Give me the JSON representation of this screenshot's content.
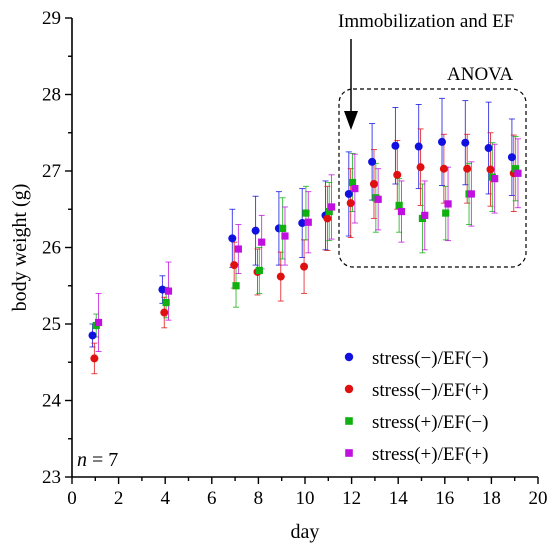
{
  "chart_data": {
    "type": "scatter",
    "title": "",
    "xlabel": "day",
    "ylabel": "body weight (g)",
    "xlim": [
      0,
      20
    ],
    "ylim": [
      23,
      29
    ],
    "x_ticks": [
      0,
      2,
      4,
      6,
      8,
      10,
      12,
      14,
      16,
      18,
      20
    ],
    "y_ticks": [
      23,
      24,
      25,
      26,
      27,
      28,
      29
    ],
    "x_tick_labels": [
      "0",
      "2",
      "4",
      "6",
      "8",
      "10",
      "12",
      "14",
      "16",
      "18",
      "20"
    ],
    "y_tick_labels": [
      "23",
      "24",
      "25",
      "26",
      "27",
      "28",
      "29"
    ],
    "grid": false,
    "legend_position": "bottom-right",
    "annotations": {
      "arrow_label": "Immobilization and EF",
      "box_label": "ANOVA",
      "n_prefix": "n",
      "n_suffix": " = 7"
    },
    "series": [
      {
        "name": "stress(−)/EF(−)",
        "color": "#1010e0",
        "marker": "circle",
        "x": [
          1,
          4,
          7,
          8,
          9,
          10,
          11,
          12,
          13,
          14,
          15,
          16,
          17,
          18,
          19
        ],
        "y": [
          24.85,
          25.45,
          26.12,
          26.22,
          26.25,
          26.32,
          26.42,
          26.7,
          27.12,
          27.33,
          27.32,
          27.38,
          27.37,
          27.3,
          27.18
        ],
        "err": [
          0.15,
          0.18,
          0.38,
          0.45,
          0.48,
          0.45,
          0.45,
          0.55,
          0.5,
          0.5,
          0.55,
          0.57,
          0.55,
          0.6,
          0.5
        ]
      },
      {
        "name": "stress(−)/EF(+)",
        "color": "#e01010",
        "marker": "circle",
        "x": [
          1,
          4,
          7,
          8,
          9,
          10,
          11,
          12,
          13,
          14,
          15,
          16,
          17,
          18,
          19
        ],
        "y": [
          24.55,
          25.15,
          25.77,
          25.68,
          25.62,
          25.75,
          26.38,
          26.58,
          26.83,
          26.95,
          27.05,
          27.03,
          27.03,
          27.02,
          26.97
        ],
        "err": [
          0.2,
          0.2,
          0.3,
          0.3,
          0.32,
          0.35,
          0.42,
          0.45,
          0.45,
          0.45,
          0.5,
          0.45,
          0.45,
          0.48,
          0.5
        ]
      },
      {
        "name": "stress(+)/EF(−)",
        "color": "#10b010",
        "marker": "square",
        "x": [
          1,
          4,
          7,
          8,
          9,
          10,
          11,
          12,
          13,
          14,
          15,
          16,
          17,
          18,
          19
        ],
        "y": [
          24.98,
          25.28,
          25.5,
          25.7,
          26.25,
          26.45,
          26.47,
          26.85,
          26.65,
          26.55,
          26.38,
          26.45,
          26.7,
          26.92,
          27.03
        ],
        "err": [
          0.15,
          0.2,
          0.28,
          0.3,
          0.4,
          0.35,
          0.38,
          0.38,
          0.45,
          0.35,
          0.45,
          0.35,
          0.4,
          0.45,
          0.42
        ]
      },
      {
        "name": "stress(+)/EF(+)",
        "color": "#c010e0",
        "marker": "square",
        "x": [
          1,
          4,
          7,
          8,
          9,
          10,
          11,
          12,
          13,
          14,
          15,
          16,
          17,
          18,
          19
        ],
        "y": [
          25.02,
          25.43,
          25.98,
          26.07,
          26.15,
          26.33,
          26.53,
          26.77,
          26.63,
          26.47,
          26.42,
          26.57,
          26.7,
          26.9,
          26.97
        ],
        "err": [
          0.38,
          0.38,
          0.32,
          0.35,
          0.38,
          0.4,
          0.42,
          0.45,
          0.4,
          0.4,
          0.45,
          0.48,
          0.42,
          0.45,
          0.45
        ]
      }
    ]
  }
}
